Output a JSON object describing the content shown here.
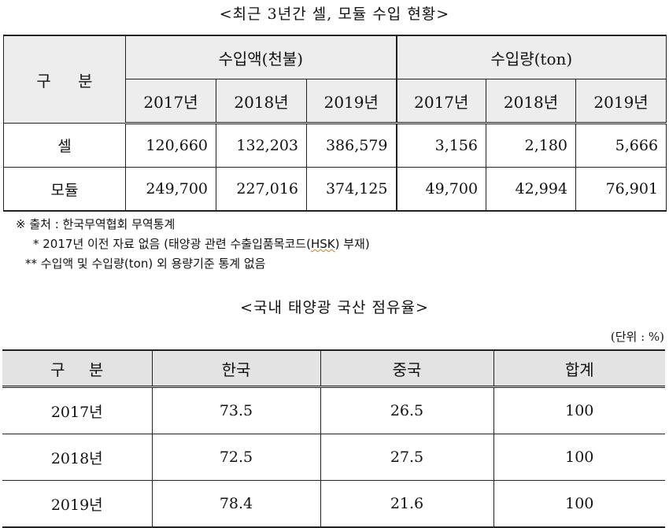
{
  "table1": {
    "title": "<최근 3년간 셀, 모듈 수입 현황>",
    "gubun": "구 분",
    "group_amount": "수입액(천불)",
    "group_qty": "수입량(ton)",
    "years": [
      "2017년",
      "2018년",
      "2019년",
      "2017년",
      "2018년",
      "2019년"
    ],
    "rows": [
      {
        "label": "셀",
        "values": [
          "120,660",
          "132,203",
          "386,579",
          "3,156",
          "2,180",
          "5,666"
        ]
      },
      {
        "label": "모듈",
        "values": [
          "249,700",
          "227,016",
          "374,125",
          "49,700",
          "42,994",
          "76,901"
        ]
      }
    ]
  },
  "notes": {
    "source": "※ 출처 : 한국무역협회 무역통계",
    "note1_pre": "* 2017년 이전 자료 없음 (태양광 관련 수출입품목코드(",
    "note1_hsk": "HSK",
    "note1_post": ") 부재)",
    "note2": "** 수입액 및 수입량(ton) 외 용량기준 통계 없음"
  },
  "table2": {
    "title": "<국내 태양광 국산 점유율>",
    "unit": "(단위 : %)",
    "headers": [
      "구 분",
      "한국",
      "중국",
      "합계"
    ],
    "rows": [
      [
        "2017년",
        "73.5",
        "26.5",
        "100"
      ],
      [
        "2018년",
        "72.5",
        "27.5",
        "100"
      ],
      [
        "2019년",
        "78.4",
        "21.6",
        "100"
      ]
    ]
  }
}
